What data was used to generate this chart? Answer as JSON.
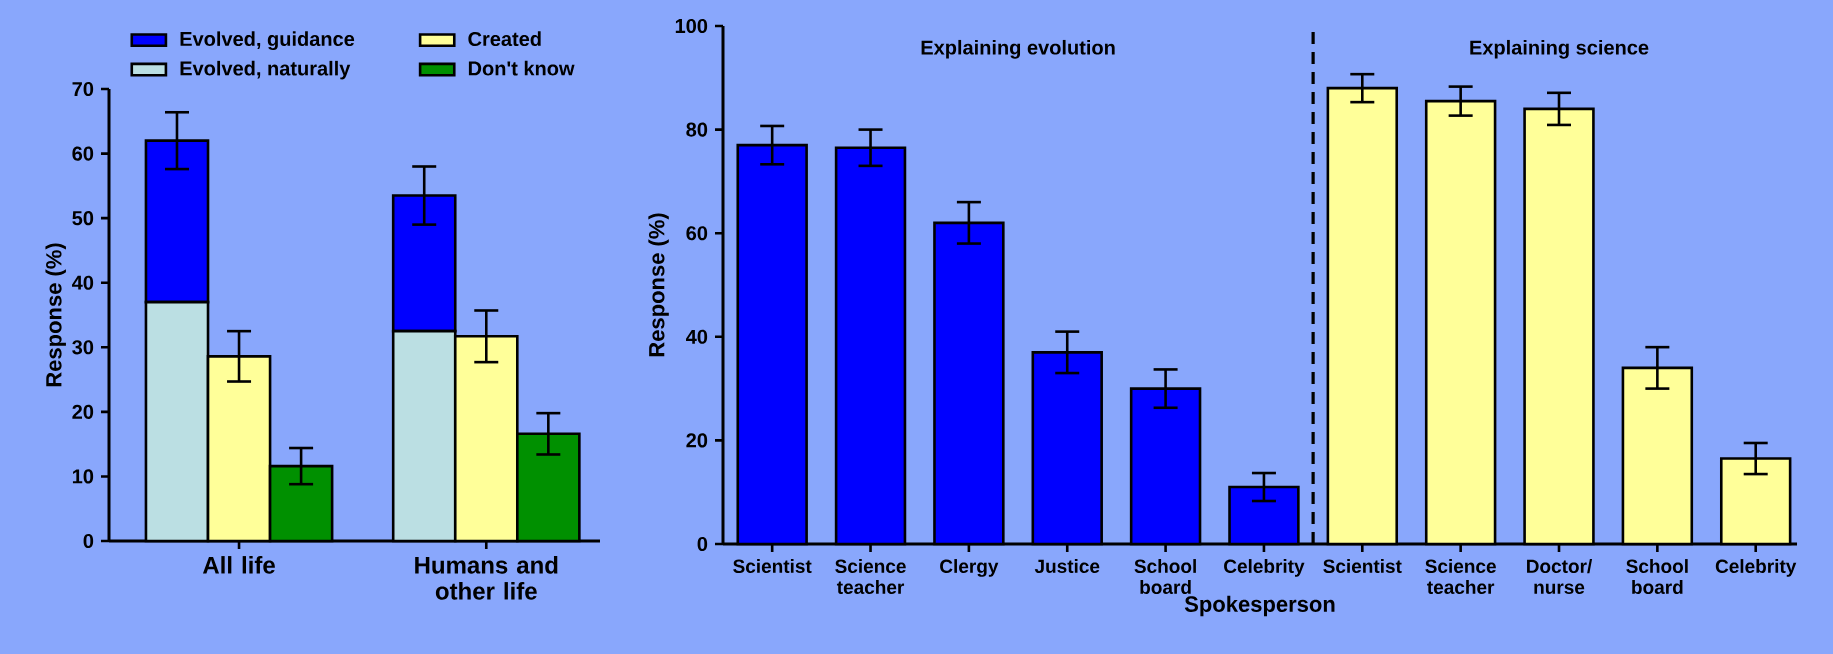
{
  "chart_data": [
    {
      "type": "bar",
      "ylabel": "Response (%)",
      "categories": [
        "All life",
        "Humans and other life"
      ],
      "ylim": [
        0,
        70
      ],
      "yticks": [
        0,
        10,
        20,
        30,
        40,
        50,
        60,
        70
      ],
      "legend": "top",
      "series": [
        {
          "name": "Evolved, guidance",
          "color": "#0000ff",
          "values": [
            25,
            21
          ],
          "base": [
            37,
            32.5
          ],
          "errors": [
            4.4,
            4.5
          ]
        },
        {
          "name": "Evolved, naturally",
          "color": "#bbdfe3",
          "values": [
            37,
            32.5
          ]
        },
        {
          "name": "Created",
          "color": "#ffff99",
          "values": [
            28.6,
            31.7
          ],
          "errors": [
            3.9,
            4
          ]
        },
        {
          "name": "Don't know",
          "color": "#009000",
          "values": [
            11.6,
            16.6
          ],
          "errors": [
            2.8,
            3.2
          ]
        }
      ]
    },
    {
      "type": "bar",
      "xlabel": "Spokesperson",
      "ylabel": "Response (%)",
      "categories": [
        "Scientist",
        "Science teacher",
        "Clergy",
        "Justice",
        "School board",
        "Celebrity",
        "Scientist",
        "Science teacher",
        "Doctor/ nurse",
        "School board",
        "Celebrity"
      ],
      "values": [
        77,
        76.5,
        62,
        37,
        30,
        11,
        88,
        85.5,
        84,
        34,
        16.5
      ],
      "colors": [
        "#0000ff",
        "#0000ff",
        "#0000ff",
        "#0000ff",
        "#0000ff",
        "#0000ff",
        "#ffff99",
        "#ffff99",
        "#ffff99",
        "#ffff99",
        "#ffff99"
      ],
      "errors": [
        3.7,
        3.5,
        4,
        4,
        3.7,
        2.7,
        2.7,
        2.8,
        3.1,
        4,
        3
      ],
      "ylim": [
        0,
        100
      ],
      "yticks": [
        0,
        20,
        40,
        60,
        80,
        100
      ],
      "annotations": [
        "Explaining evolution",
        "Explaining science"
      ]
    }
  ]
}
